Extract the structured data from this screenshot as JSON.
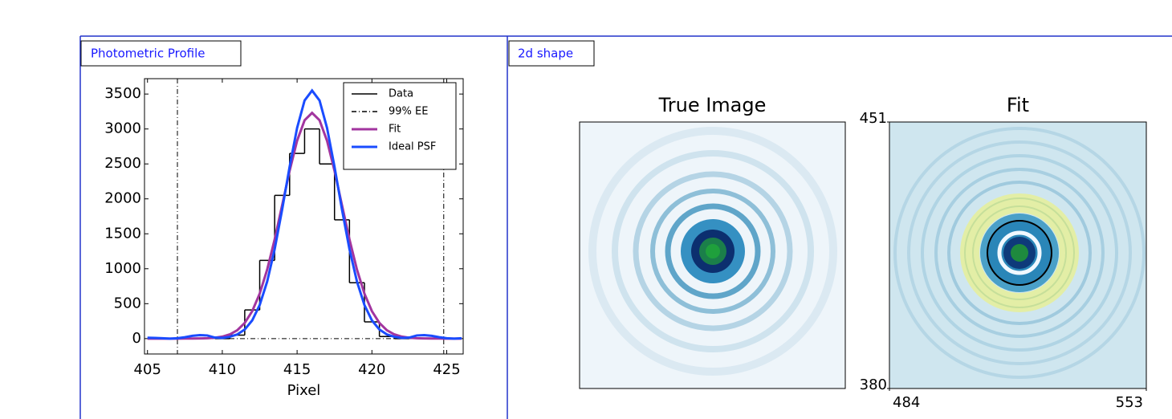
{
  "panels": [
    {
      "title": "Photometric Profile"
    },
    {
      "title": "2d shape"
    }
  ],
  "chart_data": [
    {
      "type": "line",
      "xlabel": "Pixel",
      "xlim": [
        404.8,
        426.1
      ],
      "ylim": [
        -220,
        3720
      ],
      "xticks": [
        405,
        410,
        415,
        420,
        425
      ],
      "yticks": [
        0,
        500,
        1000,
        1500,
        2000,
        2500,
        3000,
        3500
      ],
      "legend": "upper right",
      "x": [
        405,
        405.5,
        406,
        406.5,
        407,
        407.5,
        408,
        408.5,
        409,
        409.5,
        410,
        410.5,
        411,
        411.5,
        412,
        412.5,
        413,
        413.5,
        414,
        414.5,
        415,
        415.5,
        416,
        416.5,
        417,
        417.5,
        418,
        418.5,
        419,
        419.5,
        420,
        420.5,
        421,
        421.5,
        422,
        422.5,
        423,
        423.5,
        424,
        424.5,
        425,
        425.5,
        426
      ],
      "series": [
        {
          "name": "Data",
          "color": "#000000",
          "style": "step",
          "x": [
            410,
            411,
            412,
            413,
            414,
            415,
            416,
            417,
            418,
            419,
            420,
            421,
            422
          ],
          "values": [
            0,
            50,
            410,
            1120,
            2050,
            2650,
            3000,
            2500,
            1700,
            800,
            240,
            30,
            0
          ]
        },
        {
          "name": "99% EE",
          "color": "#000000",
          "style": "dashdot",
          "x": [
            407,
            424.8
          ],
          "values": [
            0,
            0
          ]
        },
        {
          "name": "Fit",
          "color": "#a2359f",
          "values": [
            0,
            0,
            0,
            0,
            0,
            1,
            1,
            2,
            5,
            13,
            28,
            60,
            120,
            225,
            393,
            644,
            988,
            1420,
            1908,
            2402,
            2832,
            3125,
            3230,
            3125,
            2832,
            2402,
            1908,
            1420,
            988,
            644,
            393,
            225,
            120,
            60,
            28,
            13,
            5,
            2,
            1,
            1,
            0,
            0,
            0
          ]
        },
        {
          "name": "Ideal PSF",
          "color": "#1a4cff",
          "values": [
            12,
            10,
            5,
            0,
            5,
            20,
            40,
            50,
            45,
            15,
            10,
            26,
            60,
            130,
            261,
            481,
            817,
            1280,
            1847,
            2459,
            3015,
            3408,
            3550,
            3408,
            3015,
            2459,
            1847,
            1280,
            817,
            481,
            261,
            130,
            60,
            26,
            10,
            15,
            45,
            50,
            40,
            20,
            5,
            0,
            5
          ]
        }
      ]
    },
    {
      "type": "image",
      "title": "True Image"
    },
    {
      "type": "image",
      "title": "Fit",
      "xlim": [
        484,
        553
      ],
      "ylim": [
        380,
        451
      ],
      "xticks": [
        484,
        553
      ],
      "yticks": [
        380,
        451
      ]
    }
  ]
}
